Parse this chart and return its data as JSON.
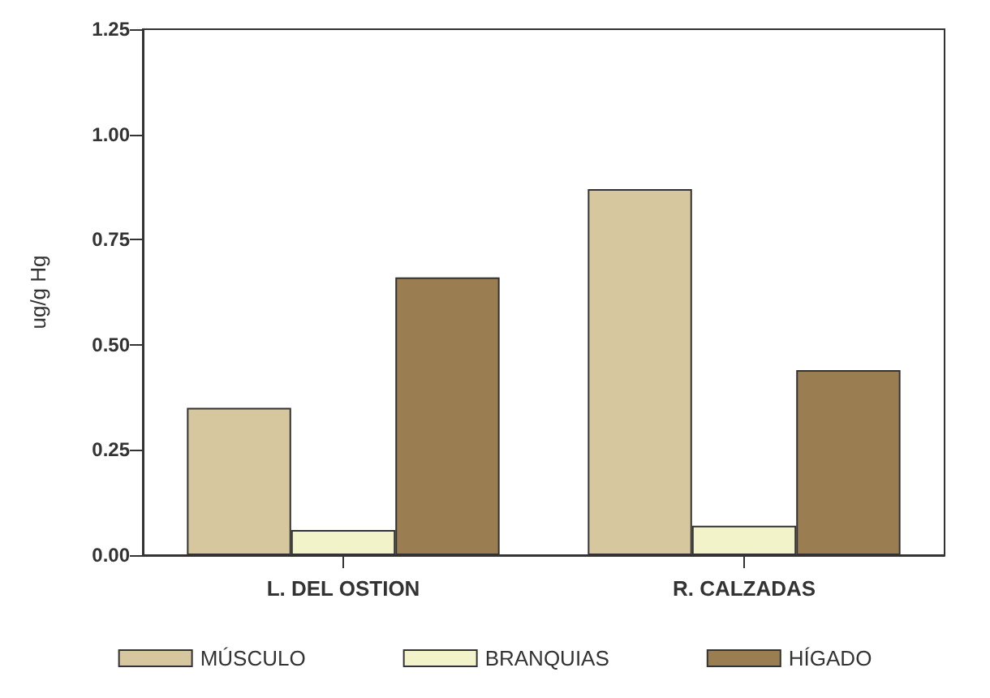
{
  "chart_data": {
    "type": "bar",
    "ylabel": "ug/g Hg",
    "categories": [
      "L. DEL OSTION",
      "R. CALZADAS"
    ],
    "series": [
      {
        "name": "MÚSCULO",
        "color": "#d7c79f",
        "values": [
          0.35,
          0.87
        ]
      },
      {
        "name": "BRANQUIAS",
        "color": "#f3f3c9",
        "values": [
          0.06,
          0.07
        ]
      },
      {
        "name": "HÍGADO",
        "color": "#9b7d52",
        "values": [
          0.66,
          0.44
        ]
      }
    ],
    "ylim": [
      0,
      1.25
    ],
    "yticks": [
      {
        "value": 0,
        "label": "0.00"
      },
      0.25,
      {
        "value": 0.5,
        "label": "0.50"
      },
      0.75,
      {
        "value": 1,
        "label": "1.00"
      },
      1.25
    ],
    "grid": false,
    "legend": "bottom"
  }
}
